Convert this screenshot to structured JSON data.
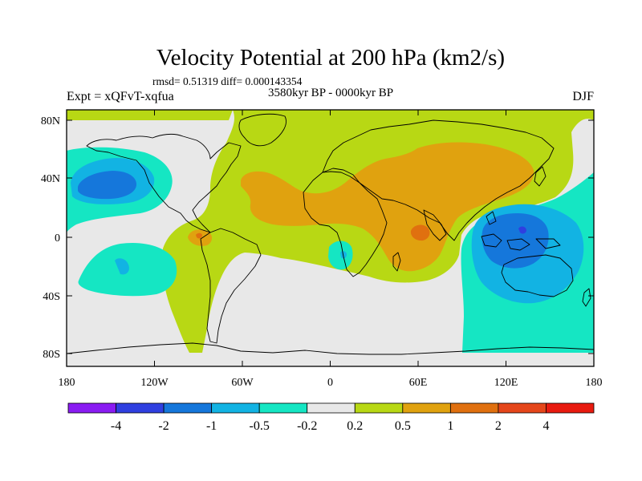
{
  "chart_data": {
    "type": "heatmap",
    "title": "Velocity Potential at 200 hPa (km2/s)",
    "stats_label": "rmsd= 0.51319 diff= 0.000143354",
    "subtitle": "3580kyr BP - 0000kyr BP",
    "left_label": "Expt = xQFvT-xqfua",
    "right_label": "DJF",
    "x_ticks": [
      "180",
      "120W",
      "60W",
      "0",
      "60E",
      "120E",
      "180"
    ],
    "y_ticks": [
      "80N",
      "40N",
      "0",
      "40S",
      "80S"
    ],
    "xlim": [
      -180,
      180
    ],
    "ylim": [
      -90,
      90
    ],
    "colorbar": {
      "colors": [
        "#8A1CF2",
        "#2F3FE0",
        "#1577DB",
        "#12B3E3",
        "#15E6C3",
        "#E8E8E8",
        "#B8D814",
        "#E0A20F",
        "#E0700F",
        "#E5461A",
        "#E81A0F"
      ],
      "tick_labels": [
        "-4",
        "-2",
        "-1",
        "-0.5",
        "-0.2",
        "0.2",
        "0.5",
        "1",
        "2",
        "4"
      ]
    }
  }
}
